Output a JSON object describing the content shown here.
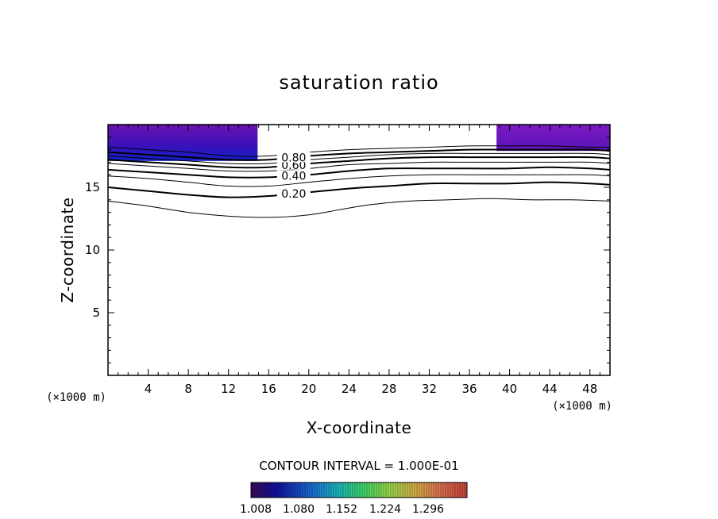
{
  "chart_data": {
    "type": "contour",
    "title": "saturation ratio",
    "xlabel": "X-coordinate",
    "ylabel": "Z-coordinate",
    "x_unit_label": "(×1000 m)",
    "y_unit_label": "(×1000 m)",
    "xlim": [
      0,
      50
    ],
    "ylim": [
      0,
      20
    ],
    "x_ticks": [
      4,
      8,
      12,
      16,
      20,
      24,
      28,
      32,
      36,
      40,
      44,
      48
    ],
    "y_ticks": [
      5,
      10,
      15
    ],
    "contour_interval_text": "CONTOUR INTERVAL = 1.000E-01",
    "contour_levels": [
      0.1,
      0.2,
      0.3,
      0.4,
      0.5,
      0.6,
      0.7,
      0.8,
      0.9
    ],
    "contour_labels": [
      "0.20",
      "0.40",
      "0.60",
      "0.80"
    ],
    "contours": [
      {
        "level": 0.1,
        "x": [
          0,
          4,
          8,
          12,
          16,
          20,
          23,
          26,
          30,
          34,
          38,
          42,
          46,
          50
        ],
        "z": [
          13.9,
          13.5,
          13.0,
          12.7,
          12.6,
          12.8,
          13.2,
          13.6,
          13.9,
          14.0,
          14.1,
          14.0,
          14.0,
          13.9
        ]
      },
      {
        "level": 0.2,
        "x": [
          0,
          4,
          8,
          12,
          16,
          20,
          24,
          28,
          32,
          36,
          40,
          44,
          48,
          50
        ],
        "z": [
          15.0,
          14.7,
          14.4,
          14.2,
          14.3,
          14.6,
          14.9,
          15.1,
          15.3,
          15.3,
          15.3,
          15.4,
          15.3,
          15.2
        ]
      },
      {
        "level": 0.3,
        "x": [
          0,
          4,
          8,
          12,
          16,
          20,
          24,
          28,
          32,
          36,
          40,
          44,
          48,
          50
        ],
        "z": [
          15.9,
          15.7,
          15.4,
          15.1,
          15.1,
          15.4,
          15.7,
          15.9,
          16.0,
          16.0,
          16.0,
          16.0,
          16.0,
          15.9
        ]
      },
      {
        "level": 0.4,
        "x": [
          0,
          4,
          8,
          12,
          16,
          20,
          24,
          28,
          32,
          36,
          40,
          44,
          48,
          50
        ],
        "z": [
          16.4,
          16.2,
          16.0,
          15.8,
          15.8,
          16.0,
          16.3,
          16.5,
          16.5,
          16.5,
          16.5,
          16.6,
          16.5,
          16.4
        ]
      },
      {
        "level": 0.5,
        "x": [
          0,
          4,
          8,
          12,
          16,
          20,
          24,
          28,
          32,
          36,
          40,
          44,
          48,
          50
        ],
        "z": [
          16.9,
          16.7,
          16.5,
          16.3,
          16.3,
          16.5,
          16.8,
          16.9,
          17.0,
          17.0,
          17.0,
          17.0,
          17.0,
          16.9
        ]
      },
      {
        "level": 0.6,
        "x": [
          0,
          4,
          8,
          12,
          16,
          20,
          24,
          28,
          32,
          36,
          40,
          44,
          48,
          50
        ],
        "z": [
          17.2,
          17.0,
          16.8,
          16.6,
          16.6,
          16.9,
          17.1,
          17.3,
          17.4,
          17.4,
          17.4,
          17.4,
          17.4,
          17.3
        ]
      },
      {
        "level": 0.7,
        "x": [
          0,
          4,
          8,
          12,
          16,
          20,
          24,
          28,
          32,
          36,
          40,
          44,
          48,
          50
        ],
        "z": [
          17.5,
          17.3,
          17.1,
          16.9,
          16.9,
          17.2,
          17.4,
          17.6,
          17.7,
          17.7,
          17.7,
          17.7,
          17.7,
          17.6
        ]
      },
      {
        "level": 0.8,
        "x": [
          0,
          4,
          8,
          12,
          16,
          20,
          24,
          28,
          32,
          36,
          40,
          44,
          48,
          50
        ],
        "z": [
          17.8,
          17.6,
          17.4,
          17.2,
          17.2,
          17.5,
          17.7,
          17.8,
          17.9,
          18.0,
          18.0,
          18.0,
          18.0,
          17.9
        ]
      },
      {
        "level": 0.9,
        "x": [
          0,
          4,
          8,
          12,
          16,
          20,
          24,
          28,
          32,
          36,
          40,
          44,
          48,
          50
        ],
        "z": [
          18.2,
          18.0,
          17.8,
          17.5,
          17.5,
          17.8,
          18.0,
          18.1,
          18.2,
          18.3,
          18.3,
          18.3,
          18.2,
          18.2
        ]
      }
    ],
    "supersaturated_regions": [
      {
        "x_range": [
          0,
          14.9
        ],
        "z_range": [
          17.1,
          20
        ]
      },
      {
        "x_range": [
          38.7,
          50
        ],
        "z_range": [
          17.9,
          20
        ]
      }
    ],
    "colorbar": {
      "tick_labels": [
        "1.008",
        "1.080",
        "1.152",
        "1.224",
        "1.296"
      ],
      "colors": [
        "#3a0a5a",
        "#1010a0",
        "#1a6cd6",
        "#1ab8c0",
        "#3ed86a",
        "#9ad84a",
        "#d8b04a",
        "#e07050",
        "#c8443a"
      ]
    }
  }
}
